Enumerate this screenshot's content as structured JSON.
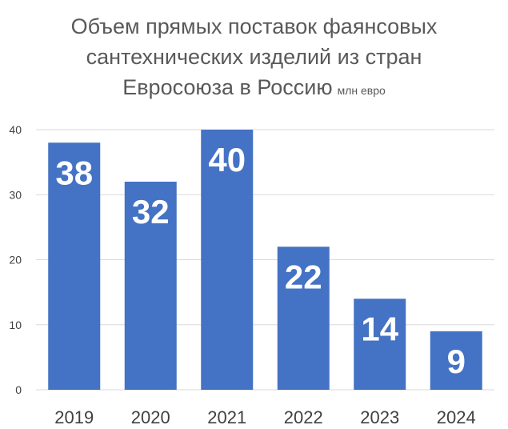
{
  "chart_data": {
    "type": "bar",
    "title_lines": [
      "Объем прямых поставок фаянсовых",
      "сантехнических изделий из стран",
      "Евросоюза в Россию"
    ],
    "title_unit": "млн евро",
    "categories": [
      "2019",
      "2020",
      "2021",
      "2022",
      "2023",
      "2024"
    ],
    "values": [
      38,
      32,
      40,
      22,
      14,
      9
    ],
    "data_labels": [
      "38",
      "32",
      "40",
      "22",
      "14",
      "9"
    ],
    "ylim": [
      0,
      40
    ],
    "yticks": [
      0,
      10,
      20,
      30,
      40
    ],
    "ytick_labels": [
      "0",
      "10",
      "20",
      "30",
      "40"
    ],
    "grid": true,
    "legend": "none",
    "colors": {
      "bar": "#4472C4",
      "grid": "#D9D9D9",
      "axis_text": "#404040",
      "title": "#595959",
      "data_label": "#FFFFFF"
    }
  }
}
